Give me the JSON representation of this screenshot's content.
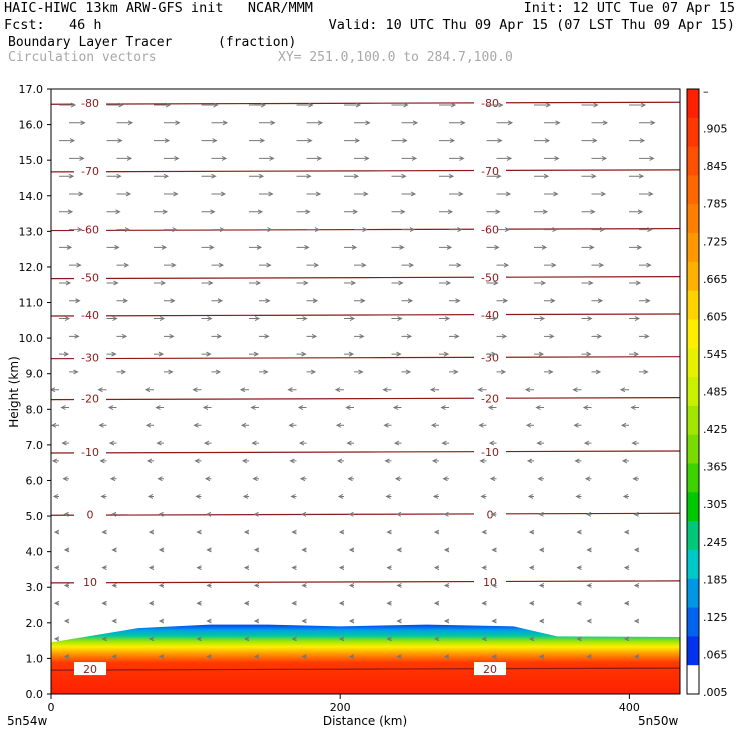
{
  "header": {
    "line1_left": "HAIC-HIWC 13km ARW-GFS init   NCAR/MMM",
    "line1_right": "Init: 12 UTC Tue 07 Apr 15",
    "line2_left": "Fcst:   46 h",
    "line2_right": "Valid: 10 UTC Thu 09 Apr 15 (07 LST Thu 09 Apr 15)",
    "line3_field": "Boundary Layer Tracer",
    "line3_units": "(fraction)",
    "line4_field": "Circulation vectors",
    "line4_xy": "XY= 251.0,100.0 to 284.7,100.0"
  },
  "chart_data": {
    "type": "heatmap",
    "xlabel": "Distance (km)",
    "ylabel": "Height (km)",
    "xlim": [
      0,
      435
    ],
    "ylim": [
      0,
      17
    ],
    "xticks": [
      0,
      200,
      400
    ],
    "yticks": [
      "0.0",
      "1.0",
      "2.0",
      "3.0",
      "4.0",
      "5.0",
      "6.0",
      "7.0",
      "8.0",
      "9.0",
      "10.0",
      "11.0",
      "12.0",
      "13.0",
      "14.0",
      "15.0",
      "16.0",
      "17.0"
    ],
    "x_endpoint_labels": [
      "5n54w",
      "5n50w"
    ],
    "colorbar": {
      "labels": [
        "–",
        ".905",
        ".845",
        ".785",
        ".725",
        ".665",
        ".605",
        ".545",
        ".485",
        ".425",
        ".365",
        ".305",
        ".245",
        ".185",
        ".125",
        ".065",
        ".005"
      ],
      "colors": [
        "#ff2000",
        "#ff3800",
        "#ff5000",
        "#ff6800",
        "#ff8000",
        "#ff9800",
        "#ffb000",
        "#ffd200",
        "#ffee00",
        "#e6f000",
        "#c8f000",
        "#a0e600",
        "#78dc00",
        "#3cd200",
        "#00c800",
        "#00c878",
        "#00c8c8",
        "#0096e6",
        "#0064f0",
        "#0032f0",
        "#ffffff"
      ]
    },
    "temperature_contours": [
      {
        "label": "-80",
        "height": 16.6
      },
      {
        "label": "-70",
        "height": 14.7
      },
      {
        "label": "-60",
        "height": 13.05
      },
      {
        "label": "-50",
        "height": 11.7
      },
      {
        "label": "-40",
        "height": 10.65
      },
      {
        "label": "-30",
        "height": 9.45
      },
      {
        "label": "-20",
        "height": 8.3
      },
      {
        "label": "-10",
        "height": 6.8
      },
      {
        "label": "0",
        "height": 5.05
      },
      {
        "label": "10",
        "height": 3.15
      },
      {
        "label": "20",
        "height": 0.7
      }
    ],
    "tracer_top_height": [
      {
        "x": 0,
        "h": 1.45
      },
      {
        "x": 60,
        "h": 1.85
      },
      {
        "x": 110,
        "h": 1.95
      },
      {
        "x": 150,
        "h": 1.95
      },
      {
        "x": 200,
        "h": 1.9
      },
      {
        "x": 260,
        "h": 1.95
      },
      {
        "x": 320,
        "h": 1.9
      },
      {
        "x": 350,
        "h": 1.62
      },
      {
        "x": 435,
        "h": 1.6
      }
    ]
  }
}
